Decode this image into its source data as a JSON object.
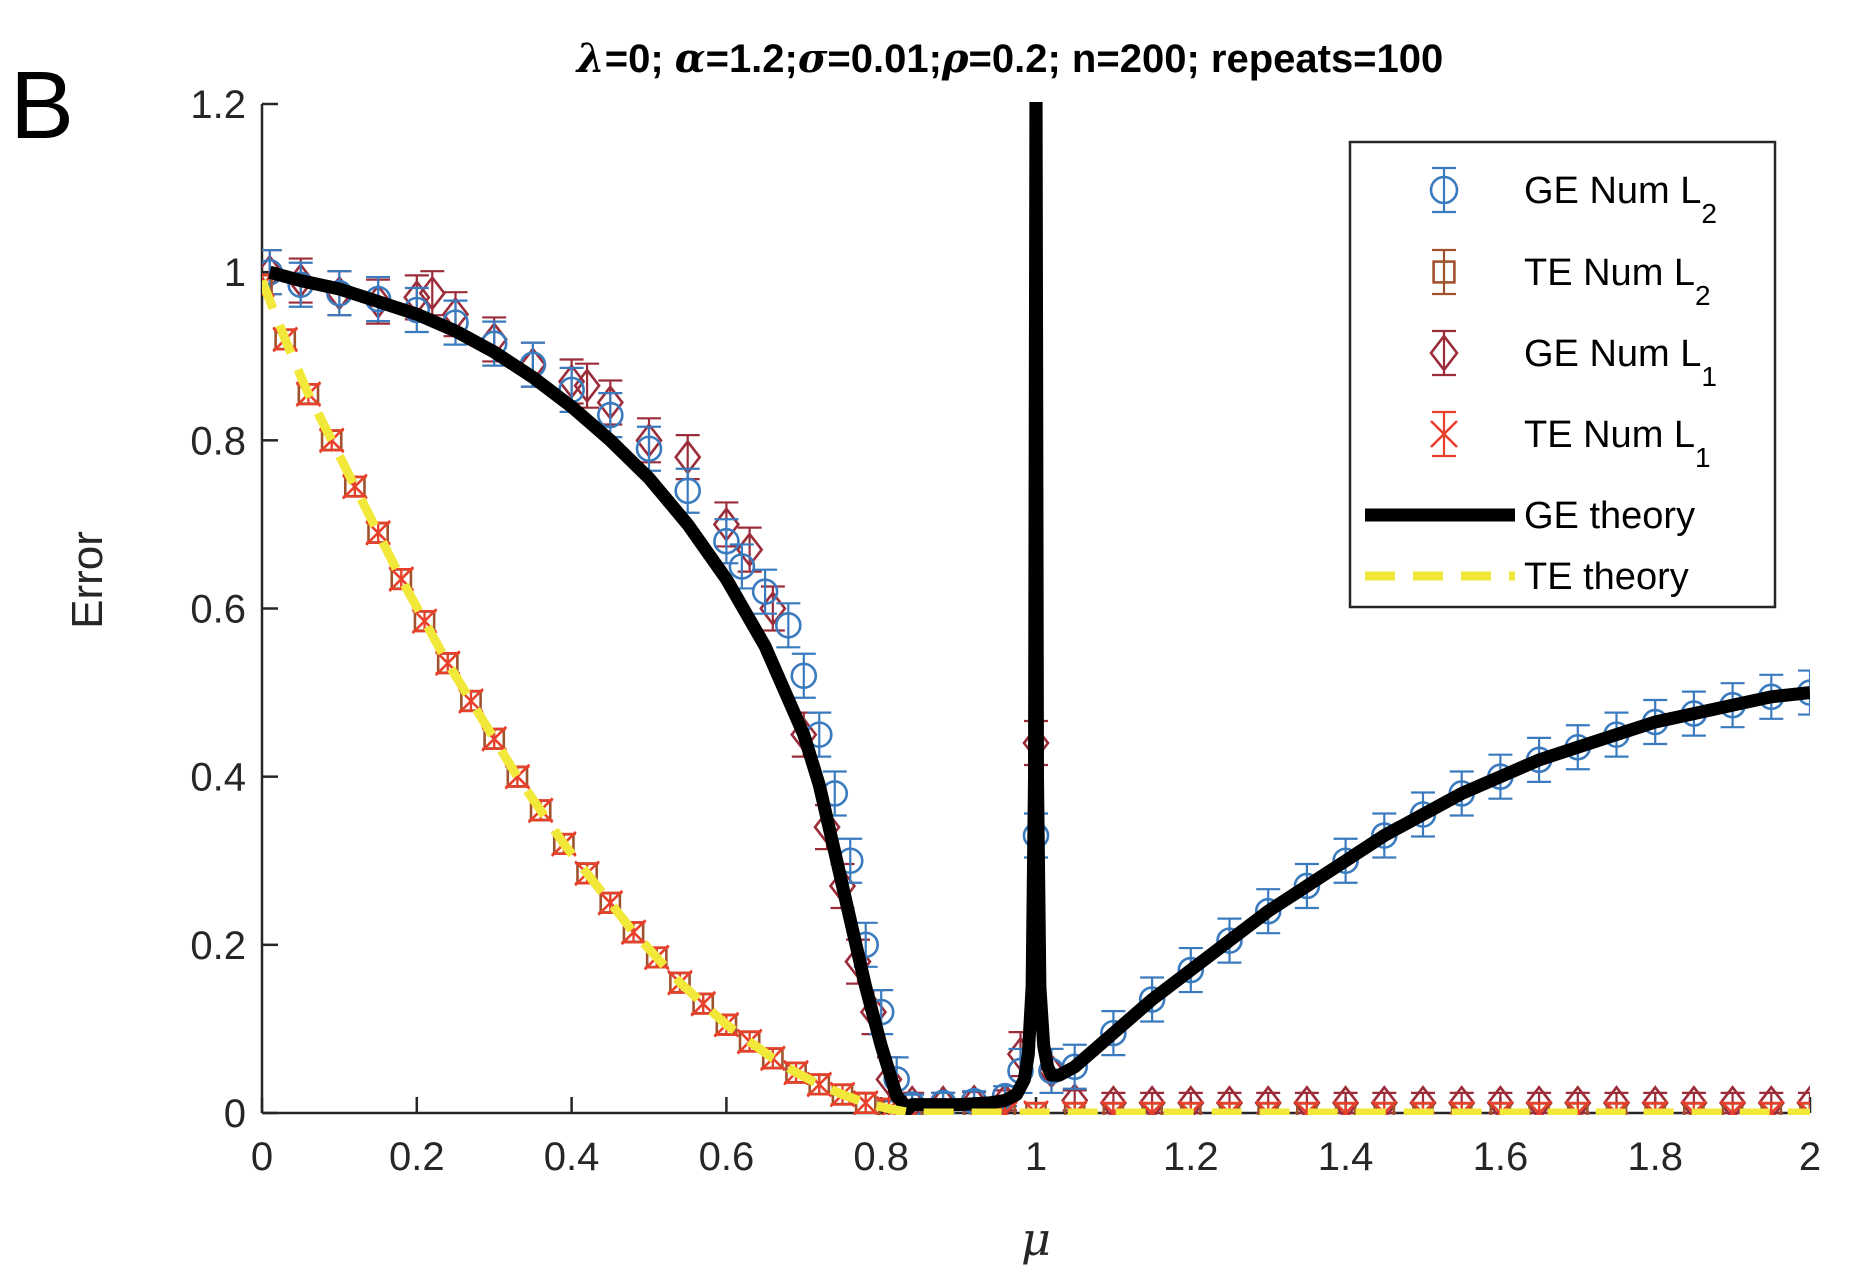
{
  "panel_label": "B",
  "chart_data": {
    "type": "line",
    "title_parts": [
      {
        "text": "λ",
        "greek": true
      },
      {
        "text": "=0; "
      },
      {
        "text": "α",
        "greek": true
      },
      {
        "text": "=1.2;"
      },
      {
        "text": "σ",
        "greek": true
      },
      {
        "text": "=0.01;"
      },
      {
        "text": "ρ",
        "greek": true
      },
      {
        "text": "=0.2; n=200; repeats=100"
      }
    ],
    "xlabel": "μ",
    "ylabel": "Error",
    "xlim": [
      0,
      2
    ],
    "ylim": [
      0,
      1.2
    ],
    "xticks": [
      0,
      0.2,
      0.4,
      0.6,
      0.8,
      1,
      1.2,
      1.4,
      1.6,
      1.8,
      2
    ],
    "xtick_labels": [
      "0",
      "0.2",
      "0.4",
      "0.6",
      "0.8",
      "1",
      "1.2",
      "1.4",
      "1.6",
      "1.8",
      "2"
    ],
    "yticks": [
      0,
      0.2,
      0.4,
      0.6,
      0.8,
      1,
      1.2
    ],
    "ytick_labels": [
      "0",
      "0.2",
      "0.4",
      "0.6",
      "0.8",
      "1",
      "1.2"
    ],
    "legend_position": "top-right",
    "series": [
      {
        "name": "GE Num L",
        "sub": "2",
        "marker": "circle",
        "color": "#3a7bbf",
        "kind": "markers",
        "x": [
          0.01,
          0.05,
          0.1,
          0.15,
          0.2,
          0.25,
          0.3,
          0.35,
          0.4,
          0.45,
          0.5,
          0.55,
          0.6,
          0.62,
          0.65,
          0.68,
          0.7,
          0.72,
          0.74,
          0.76,
          0.78,
          0.8,
          0.82,
          0.84,
          0.88,
          0.92,
          0.96,
          0.98,
          1.0,
          1.02,
          1.05,
          1.1,
          1.15,
          1.2,
          1.25,
          1.3,
          1.35,
          1.4,
          1.45,
          1.5,
          1.55,
          1.6,
          1.65,
          1.7,
          1.75,
          1.8,
          1.85,
          1.9,
          1.95,
          2.0
        ],
        "y": [
          1.0,
          0.985,
          0.975,
          0.968,
          0.955,
          0.94,
          0.915,
          0.89,
          0.86,
          0.83,
          0.79,
          0.74,
          0.68,
          0.65,
          0.62,
          0.58,
          0.52,
          0.45,
          0.38,
          0.3,
          0.2,
          0.12,
          0.04,
          0.01,
          0.012,
          0.014,
          0.02,
          0.05,
          0.33,
          0.05,
          0.055,
          0.095,
          0.135,
          0.17,
          0.205,
          0.24,
          0.27,
          0.3,
          0.33,
          0.355,
          0.38,
          0.4,
          0.42,
          0.435,
          0.45,
          0.465,
          0.475,
          0.485,
          0.495,
          0.5
        ]
      },
      {
        "name": "TE Num L",
        "sub": "2",
        "marker": "square",
        "color": "#a0522d",
        "kind": "markers",
        "x": [
          0.0,
          0.03,
          0.06,
          0.09,
          0.12,
          0.15,
          0.18,
          0.21,
          0.24,
          0.27,
          0.3,
          0.33,
          0.36,
          0.39,
          0.42,
          0.45,
          0.48,
          0.51,
          0.54,
          0.57,
          0.6,
          0.63,
          0.66,
          0.69,
          0.72,
          0.75,
          0.78,
          0.81,
          0.84,
          0.88,
          0.92,
          0.96,
          1.0,
          1.05,
          1.1,
          1.15,
          1.2,
          1.25,
          1.3,
          1.35,
          1.4,
          1.45,
          1.5,
          1.55,
          1.6,
          1.65,
          1.7,
          1.75,
          1.8,
          1.85,
          1.9,
          1.95,
          2.0
        ],
        "y": [
          0.985,
          0.92,
          0.855,
          0.8,
          0.745,
          0.69,
          0.635,
          0.585,
          0.535,
          0.49,
          0.445,
          0.4,
          0.36,
          0.32,
          0.285,
          0.25,
          0.215,
          0.185,
          0.155,
          0.13,
          0.105,
          0.085,
          0.065,
          0.048,
          0.034,
          0.022,
          0.012,
          0.005,
          0.002,
          0.0,
          0.0,
          0.0,
          0.0,
          0.0,
          0.0,
          0.0,
          0.0,
          0.0,
          0.0,
          0.0,
          0.0,
          0.0,
          0.0,
          0.0,
          0.0,
          0.0,
          0.0,
          0.0,
          0.0,
          0.0,
          0.0,
          0.0,
          0.0
        ]
      },
      {
        "name": "GE Num L",
        "sub": "1",
        "marker": "diamond",
        "color": "#9b2d3a",
        "kind": "markers",
        "x": [
          0.01,
          0.05,
          0.1,
          0.15,
          0.2,
          0.22,
          0.25,
          0.3,
          0.35,
          0.4,
          0.42,
          0.45,
          0.5,
          0.55,
          0.6,
          0.63,
          0.66,
          0.7,
          0.73,
          0.75,
          0.77,
          0.79,
          0.81,
          0.84,
          0.88,
          0.92,
          0.96,
          0.98,
          1.0,
          1.02,
          1.05,
          1.1,
          1.15,
          1.2,
          1.25,
          1.3,
          1.35,
          1.4,
          1.45,
          1.5,
          1.55,
          1.6,
          1.65,
          1.7,
          1.75,
          1.8,
          1.85,
          1.9,
          1.95,
          2.0
        ],
        "y": [
          1.0,
          0.99,
          0.975,
          0.965,
          0.97,
          0.975,
          0.95,
          0.92,
          0.89,
          0.87,
          0.865,
          0.845,
          0.8,
          0.78,
          0.7,
          0.67,
          0.6,
          0.45,
          0.34,
          0.27,
          0.18,
          0.12,
          0.04,
          0.012,
          0.012,
          0.013,
          0.015,
          0.07,
          0.44,
          0.05,
          0.015,
          0.012,
          0.012,
          0.012,
          0.012,
          0.012,
          0.012,
          0.012,
          0.012,
          0.012,
          0.012,
          0.012,
          0.012,
          0.012,
          0.012,
          0.012,
          0.012,
          0.012,
          0.012,
          0.012
        ]
      },
      {
        "name": "TE Num L",
        "sub": "1",
        "marker": "cross",
        "color": "#e8402a",
        "kind": "markers",
        "x": [
          0.0,
          0.03,
          0.06,
          0.09,
          0.12,
          0.15,
          0.18,
          0.21,
          0.24,
          0.27,
          0.3,
          0.33,
          0.36,
          0.39,
          0.42,
          0.45,
          0.48,
          0.51,
          0.54,
          0.57,
          0.6,
          0.63,
          0.66,
          0.69,
          0.72,
          0.75,
          0.78,
          0.81,
          0.84,
          0.88,
          0.92,
          0.96,
          1.0,
          1.05,
          1.1,
          1.15,
          1.2,
          1.25,
          1.3,
          1.35,
          1.4,
          1.45,
          1.5,
          1.55,
          1.6,
          1.65,
          1.7,
          1.75,
          1.8,
          1.85,
          1.9,
          1.95,
          2.0
        ],
        "y": [
          0.985,
          0.92,
          0.855,
          0.8,
          0.745,
          0.69,
          0.635,
          0.585,
          0.535,
          0.49,
          0.445,
          0.4,
          0.36,
          0.32,
          0.285,
          0.25,
          0.215,
          0.185,
          0.155,
          0.13,
          0.105,
          0.085,
          0.065,
          0.048,
          0.034,
          0.022,
          0.012,
          0.005,
          0.002,
          0.0,
          0.0,
          0.0,
          0.0,
          0.0,
          0.0,
          0.0,
          0.0,
          0.0,
          0.0,
          0.0,
          0.0,
          0.0,
          0.0,
          0.0,
          0.0,
          0.0,
          0.0,
          0.0,
          0.0,
          0.0,
          0.0,
          0.0,
          0.0
        ]
      },
      {
        "name": "GE theory",
        "color": "#000000",
        "kind": "solid",
        "x": [
          0.01,
          0.05,
          0.1,
          0.15,
          0.2,
          0.25,
          0.3,
          0.35,
          0.4,
          0.45,
          0.5,
          0.55,
          0.6,
          0.65,
          0.7,
          0.72,
          0.74,
          0.76,
          0.78,
          0.8,
          0.82,
          0.835,
          0.84,
          0.86,
          0.9,
          0.94,
          0.96,
          0.975,
          0.985,
          0.99,
          0.995,
          0.998,
          1.0,
          1.002,
          1.005,
          1.01,
          1.015,
          1.02,
          1.03,
          1.05,
          1.1,
          1.15,
          1.2,
          1.25,
          1.3,
          1.35,
          1.4,
          1.45,
          1.5,
          1.55,
          1.6,
          1.65,
          1.7,
          1.75,
          1.8,
          1.85,
          1.9,
          1.95,
          2.0
        ],
        "y": [
          1.0,
          0.99,
          0.98,
          0.965,
          0.95,
          0.93,
          0.905,
          0.875,
          0.84,
          0.8,
          0.755,
          0.7,
          0.635,
          0.555,
          0.45,
          0.39,
          0.31,
          0.23,
          0.15,
          0.08,
          0.02,
          0.005,
          0.01,
          0.01,
          0.01,
          0.012,
          0.015,
          0.022,
          0.04,
          0.07,
          0.15,
          0.4,
          1.25,
          0.4,
          0.15,
          0.08,
          0.055,
          0.045,
          0.045,
          0.055,
          0.095,
          0.135,
          0.17,
          0.205,
          0.24,
          0.27,
          0.3,
          0.33,
          0.355,
          0.38,
          0.4,
          0.42,
          0.435,
          0.45,
          0.465,
          0.475,
          0.485,
          0.495,
          0.5
        ]
      },
      {
        "name": "TE theory",
        "color": "#f2e83a",
        "kind": "dashed",
        "x": [
          0.0,
          0.03,
          0.06,
          0.09,
          0.12,
          0.15,
          0.18,
          0.21,
          0.24,
          0.27,
          0.3,
          0.33,
          0.36,
          0.39,
          0.42,
          0.45,
          0.48,
          0.51,
          0.54,
          0.57,
          0.6,
          0.63,
          0.66,
          0.69,
          0.72,
          0.75,
          0.78,
          0.81,
          0.84,
          0.9,
          1.0,
          1.2,
          1.4,
          1.6,
          1.8,
          2.0
        ],
        "y": [
          0.99,
          0.92,
          0.855,
          0.8,
          0.745,
          0.69,
          0.635,
          0.585,
          0.535,
          0.49,
          0.445,
          0.4,
          0.36,
          0.32,
          0.285,
          0.25,
          0.215,
          0.185,
          0.155,
          0.13,
          0.105,
          0.085,
          0.065,
          0.048,
          0.034,
          0.022,
          0.012,
          0.005,
          0.0,
          0.0,
          0.0,
          0.0,
          0.0,
          0.0,
          0.0,
          0.0
        ]
      }
    ]
  }
}
